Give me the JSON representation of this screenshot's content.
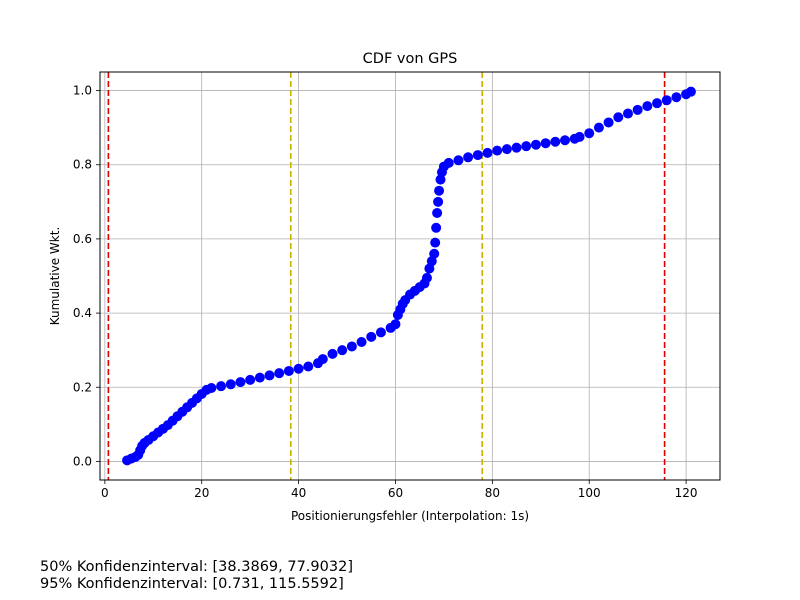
{
  "chart_data": {
    "type": "scatter",
    "title": "CDF von GPS",
    "xlabel": "Positionierungsfehler (Interpolation: 1s)",
    "ylabel": "Kumulative Wkt.",
    "xlim": [
      -1,
      127
    ],
    "ylim": [
      -0.05,
      1.05
    ],
    "xticks": [
      0,
      20,
      40,
      60,
      80,
      100,
      120
    ],
    "yticks": [
      0.0,
      0.2,
      0.4,
      0.6,
      0.8,
      1.0
    ],
    "xtick_labels": [
      "0",
      "20",
      "40",
      "60",
      "80",
      "100",
      "120"
    ],
    "ytick_labels": [
      "0.0",
      "0.2",
      "0.4",
      "0.6",
      "0.8",
      "1.0"
    ],
    "grid": true,
    "series": [
      {
        "color": "#0000ff",
        "points": [
          [
            4.6,
            0.003
          ],
          [
            5.5,
            0.008
          ],
          [
            6.3,
            0.012
          ],
          [
            6.9,
            0.018
          ],
          [
            7.3,
            0.03
          ],
          [
            7.7,
            0.042
          ],
          [
            8.2,
            0.05
          ],
          [
            9.0,
            0.058
          ],
          [
            10.0,
            0.068
          ],
          [
            11.0,
            0.078
          ],
          [
            12.0,
            0.088
          ],
          [
            13.0,
            0.098
          ],
          [
            14.0,
            0.11
          ],
          [
            15.0,
            0.122
          ],
          [
            16.0,
            0.134
          ],
          [
            17.0,
            0.146
          ],
          [
            18.0,
            0.158
          ],
          [
            19.0,
            0.17
          ],
          [
            20.0,
            0.182
          ],
          [
            21.0,
            0.193
          ],
          [
            22.0,
            0.198
          ],
          [
            24.0,
            0.203
          ],
          [
            26.0,
            0.208
          ],
          [
            28.0,
            0.214
          ],
          [
            30.0,
            0.22
          ],
          [
            32.0,
            0.226
          ],
          [
            34.0,
            0.232
          ],
          [
            36.0,
            0.238
          ],
          [
            38.0,
            0.244
          ],
          [
            40.0,
            0.25
          ],
          [
            42.0,
            0.256
          ],
          [
            44.0,
            0.265
          ],
          [
            45.0,
            0.276
          ],
          [
            47.0,
            0.29
          ],
          [
            49.0,
            0.3
          ],
          [
            51.0,
            0.31
          ],
          [
            53.0,
            0.322
          ],
          [
            55.0,
            0.336
          ],
          [
            57.0,
            0.348
          ],
          [
            59.0,
            0.36
          ],
          [
            60.0,
            0.37
          ],
          [
            60.5,
            0.395
          ],
          [
            61.0,
            0.41
          ],
          [
            61.5,
            0.425
          ],
          [
            62.0,
            0.435
          ],
          [
            63.0,
            0.45
          ],
          [
            64.0,
            0.46
          ],
          [
            65.0,
            0.47
          ],
          [
            66.0,
            0.48
          ],
          [
            66.5,
            0.495
          ],
          [
            67.0,
            0.52
          ],
          [
            67.5,
            0.54
          ],
          [
            68.0,
            0.56
          ],
          [
            68.2,
            0.59
          ],
          [
            68.4,
            0.63
          ],
          [
            68.6,
            0.67
          ],
          [
            68.8,
            0.7
          ],
          [
            69.0,
            0.73
          ],
          [
            69.3,
            0.76
          ],
          [
            69.6,
            0.78
          ],
          [
            70.0,
            0.795
          ],
          [
            71.0,
            0.805
          ],
          [
            73.0,
            0.812
          ],
          [
            75.0,
            0.82
          ],
          [
            77.0,
            0.826
          ],
          [
            79.0,
            0.832
          ],
          [
            81.0,
            0.838
          ],
          [
            83.0,
            0.842
          ],
          [
            85.0,
            0.846
          ],
          [
            87.0,
            0.85
          ],
          [
            89.0,
            0.854
          ],
          [
            91.0,
            0.858
          ],
          [
            93.0,
            0.862
          ],
          [
            95.0,
            0.866
          ],
          [
            97.0,
            0.87
          ],
          [
            98.0,
            0.875
          ],
          [
            100.0,
            0.885
          ],
          [
            102.0,
            0.9
          ],
          [
            104.0,
            0.914
          ],
          [
            106.0,
            0.928
          ],
          [
            108.0,
            0.938
          ],
          [
            110.0,
            0.948
          ],
          [
            112.0,
            0.958
          ],
          [
            114.0,
            0.966
          ],
          [
            116.0,
            0.974
          ],
          [
            118.0,
            0.982
          ],
          [
            120.0,
            0.99
          ],
          [
            121.0,
            0.997
          ]
        ]
      }
    ],
    "vlines": [
      {
        "x": 0.731,
        "color": "#e00000"
      },
      {
        "x": 38.3869,
        "color": "#c8b400"
      },
      {
        "x": 77.9032,
        "color": "#c8b400"
      },
      {
        "x": 115.5592,
        "color": "#e00000"
      }
    ]
  },
  "footnotes": {
    "line1": "50% Konfidenzinterval: [38.3869, 77.9032]",
    "line2": "95% Konfidenzinterval: [0.731, 115.5592]"
  }
}
